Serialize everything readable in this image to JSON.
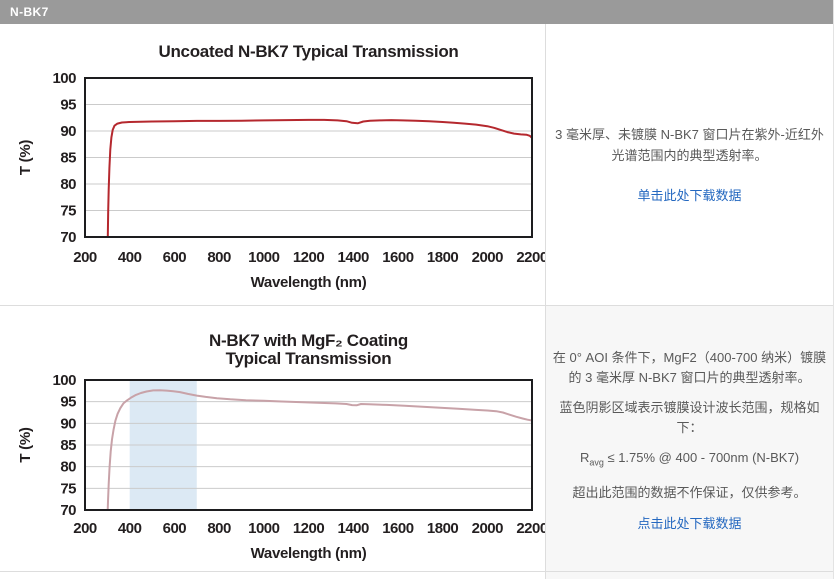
{
  "header": {
    "title": "N-BK7"
  },
  "colors": {
    "header_bg": "#9a9a9a",
    "link": "#2468c0",
    "body_text": "#595959",
    "uncoated_curve": "#b5282e",
    "coated_curve": "#c8a2a8",
    "design_band": "#dce9f4"
  },
  "rows": [
    {
      "description": "3 毫米厚、未镀膜 N-BK7 窗口片在紫外-近红外光谱范围内的典型透射率。",
      "link": "单击此处下载数据"
    },
    {
      "p1": "在 0° AOI 条件下，MgF2（400-700 纳米）镀膜的 3 毫米厚 N-BK7 窗口片的典型透射率。",
      "p2": "蓝色阴影区域表示镀膜设计波长范围，规格如下：",
      "spec_r": "R",
      "spec_sub": "avg",
      "spec_rest": " ≤ 1.75% @ 400 - 700nm (N-BK7)",
      "p3": "超出此范围的数据不作保证，仅供参考。",
      "link": "点击此处下载数据"
    }
  ],
  "chart_data": [
    {
      "type": "line",
      "title_lines": [
        "Uncoated N-BK7 Typical Transmission"
      ],
      "xlabel": "Wavelength (nm)",
      "ylabel": "T (%)",
      "xlim": [
        200,
        2200
      ],
      "ylim": [
        70,
        100
      ],
      "xticks": [
        200,
        400,
        600,
        800,
        1000,
        1200,
        1400,
        1600,
        1800,
        2000,
        2200
      ],
      "yticks": [
        70,
        75,
        80,
        85,
        90,
        95,
        100
      ],
      "grid": "horizontal",
      "grid_color": "#cbcbcb",
      "frame_color": "#1d1d1f",
      "series": [
        {
          "name": "Uncoated N-BK7",
          "color": "#b5282e",
          "x": [
            296,
            300,
            302,
            304,
            306,
            309,
            313,
            318,
            324,
            332,
            345,
            365,
            400,
            450,
            500,
            600,
            700,
            800,
            900,
            1000,
            1100,
            1200,
            1270,
            1330,
            1370,
            1395,
            1420,
            1445,
            1475,
            1520,
            1570,
            1620,
            1680,
            1740,
            1800,
            1850,
            1900,
            1950,
            2000,
            2030,
            2060,
            2090,
            2120,
            2150,
            2175,
            2190,
            2200
          ],
          "y": [
            55,
            64,
            70,
            75,
            79,
            83,
            86.5,
            88.8,
            90.2,
            91.0,
            91.4,
            91.6,
            91.7,
            91.75,
            91.8,
            91.85,
            91.9,
            91.9,
            91.95,
            92.0,
            92.05,
            92.1,
            92.1,
            92.0,
            91.85,
            91.55,
            91.45,
            91.8,
            91.95,
            92.0,
            92.05,
            92.0,
            91.95,
            91.85,
            91.7,
            91.55,
            91.4,
            91.2,
            90.9,
            90.6,
            90.2,
            89.8,
            89.5,
            89.35,
            89.3,
            89.1,
            88.7
          ]
        }
      ]
    },
    {
      "type": "line",
      "title_lines": [
        "N-BK7 with MgF₂ Coating",
        "Typical Transmission"
      ],
      "xlabel": "Wavelength (nm)",
      "ylabel": "T (%)",
      "xlim": [
        200,
        2200
      ],
      "ylim": [
        70,
        100
      ],
      "xticks": [
        200,
        400,
        600,
        800,
        1000,
        1200,
        1400,
        1600,
        1800,
        2000,
        2200
      ],
      "yticks": [
        70,
        75,
        80,
        85,
        90,
        95,
        100
      ],
      "grid": "horizontal",
      "grid_color": "#cbcbcb",
      "frame_color": "#1d1d1f",
      "band": {
        "x0": 400,
        "x1": 700,
        "color": "#dce9f4",
        "label": "MgF2 design wavelength range"
      },
      "series": [
        {
          "name": "N-BK7 with MgF2 Coating",
          "color": "#c8a2a8",
          "x": [
            294,
            297,
            300,
            303,
            306,
            310,
            315,
            321,
            328,
            336,
            346,
            358,
            372,
            388,
            405,
            425,
            450,
            475,
            505,
            535,
            565,
            595,
            625,
            660,
            700,
            740,
            790,
            850,
            920,
            1000,
            1080,
            1160,
            1240,
            1320,
            1370,
            1395,
            1415,
            1435,
            1470,
            1550,
            1630,
            1710,
            1790,
            1870,
            1950,
            2000,
            2040,
            2070,
            2100,
            2130,
            2160,
            2180,
            2200
          ],
          "y": [
            52,
            60,
            67,
            72,
            76,
            80,
            83.5,
            86.3,
            88.6,
            90.6,
            92.2,
            93.5,
            94.6,
            95.3,
            95.9,
            96.5,
            97.0,
            97.35,
            97.6,
            97.65,
            97.55,
            97.4,
            97.2,
            96.8,
            96.4,
            96.1,
            95.8,
            95.55,
            95.35,
            95.2,
            95.05,
            94.9,
            94.75,
            94.6,
            94.45,
            94.2,
            94.15,
            94.45,
            94.4,
            94.25,
            94.05,
            93.85,
            93.6,
            93.35,
            93.1,
            92.95,
            92.8,
            92.5,
            92.0,
            91.5,
            91.1,
            90.85,
            90.65
          ]
        }
      ]
    }
  ]
}
